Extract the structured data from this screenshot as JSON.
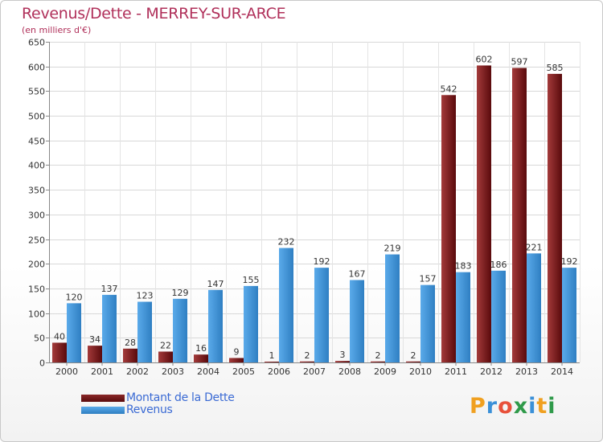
{
  "title": "Revenus/Dette - MERREY-SUR-ARCE",
  "subtitle": "(en milliers d'€)",
  "legend": [
    {
      "label": "Montant de la Dette",
      "color": "#6b0f10"
    },
    {
      "label": "Revenus",
      "color": "#3d95d6"
    }
  ],
  "logo_text": "Proxiti",
  "colors": {
    "dette": "#6b0f10",
    "dette_light": "#a33a3a",
    "revenus": "#3384c8",
    "revenus_light": "#5aaaea",
    "title": "#b0305a",
    "legend_text": "#3a6ad4"
  },
  "chart_data": {
    "type": "bar",
    "categories": [
      "2000",
      "2001",
      "2002",
      "2003",
      "2004",
      "2005",
      "2006",
      "2007",
      "2008",
      "2009",
      "2010",
      "2011",
      "2012",
      "2013",
      "2014"
    ],
    "series": [
      {
        "name": "Montant de la Dette",
        "values": [
          40,
          34,
          28,
          22,
          16,
          9,
          1,
          2,
          3,
          2,
          2,
          542,
          602,
          597,
          585
        ]
      },
      {
        "name": "Revenus",
        "values": [
          120,
          137,
          123,
          129,
          147,
          155,
          232,
          192,
          167,
          219,
          157,
          183,
          186,
          221,
          192
        ]
      }
    ],
    "ylim": [
      0,
      650
    ],
    "yticks": [
      0,
      50,
      100,
      150,
      200,
      250,
      300,
      350,
      400,
      450,
      500,
      550,
      600,
      650
    ],
    "grid": true
  }
}
